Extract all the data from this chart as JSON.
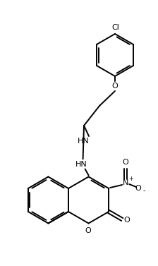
{
  "background_color": "#ffffff",
  "line_color": "#000000",
  "line_width": 1.4,
  "figsize": [
    2.24,
    3.77
  ],
  "dpi": 100,
  "cl_label": "Cl",
  "o_label": "O",
  "hn_label": "HN",
  "n_label": "N",
  "plus_label": "+",
  "minus_label": "-"
}
